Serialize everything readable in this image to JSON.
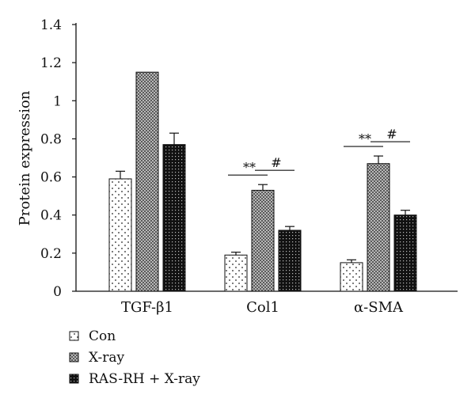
{
  "chart_data": {
    "type": "bar",
    "ylabel": "Protein expression",
    "ylim": [
      0,
      1.4
    ],
    "y_ticks": [
      "0",
      "0.2",
      "0.4",
      "0.6",
      "0.8",
      "1",
      "1.2",
      "1.4"
    ],
    "categories": [
      "TGF-β1",
      "Col1",
      "α-SMA"
    ],
    "series": [
      {
        "name": "Con",
        "values": [
          0.59,
          0.19,
          0.15
        ],
        "errors": [
          0.04,
          0.015,
          0.015
        ],
        "pattern": "dots"
      },
      {
        "name": "X-ray",
        "values": [
          1.15,
          0.53,
          0.67
        ],
        "errors": [
          0.0,
          0.03,
          0.04
        ],
        "pattern": "crosshatch"
      },
      {
        "name": "RAS-RH + X-ray",
        "values": [
          0.77,
          0.32,
          0.4
        ],
        "errors": [
          0.06,
          0.02,
          0.025
        ],
        "pattern": "dense"
      }
    ],
    "annotations": [
      {
        "category": 1,
        "between": [
          0,
          1
        ],
        "text": "**"
      },
      {
        "category": 1,
        "between": [
          1,
          2
        ],
        "text": "#"
      },
      {
        "category": 2,
        "between": [
          0,
          1
        ],
        "text": "**"
      },
      {
        "category": 2,
        "between": [
          1,
          2
        ],
        "text": "#"
      }
    ],
    "legend_position": "bottom-left",
    "grid": false
  }
}
